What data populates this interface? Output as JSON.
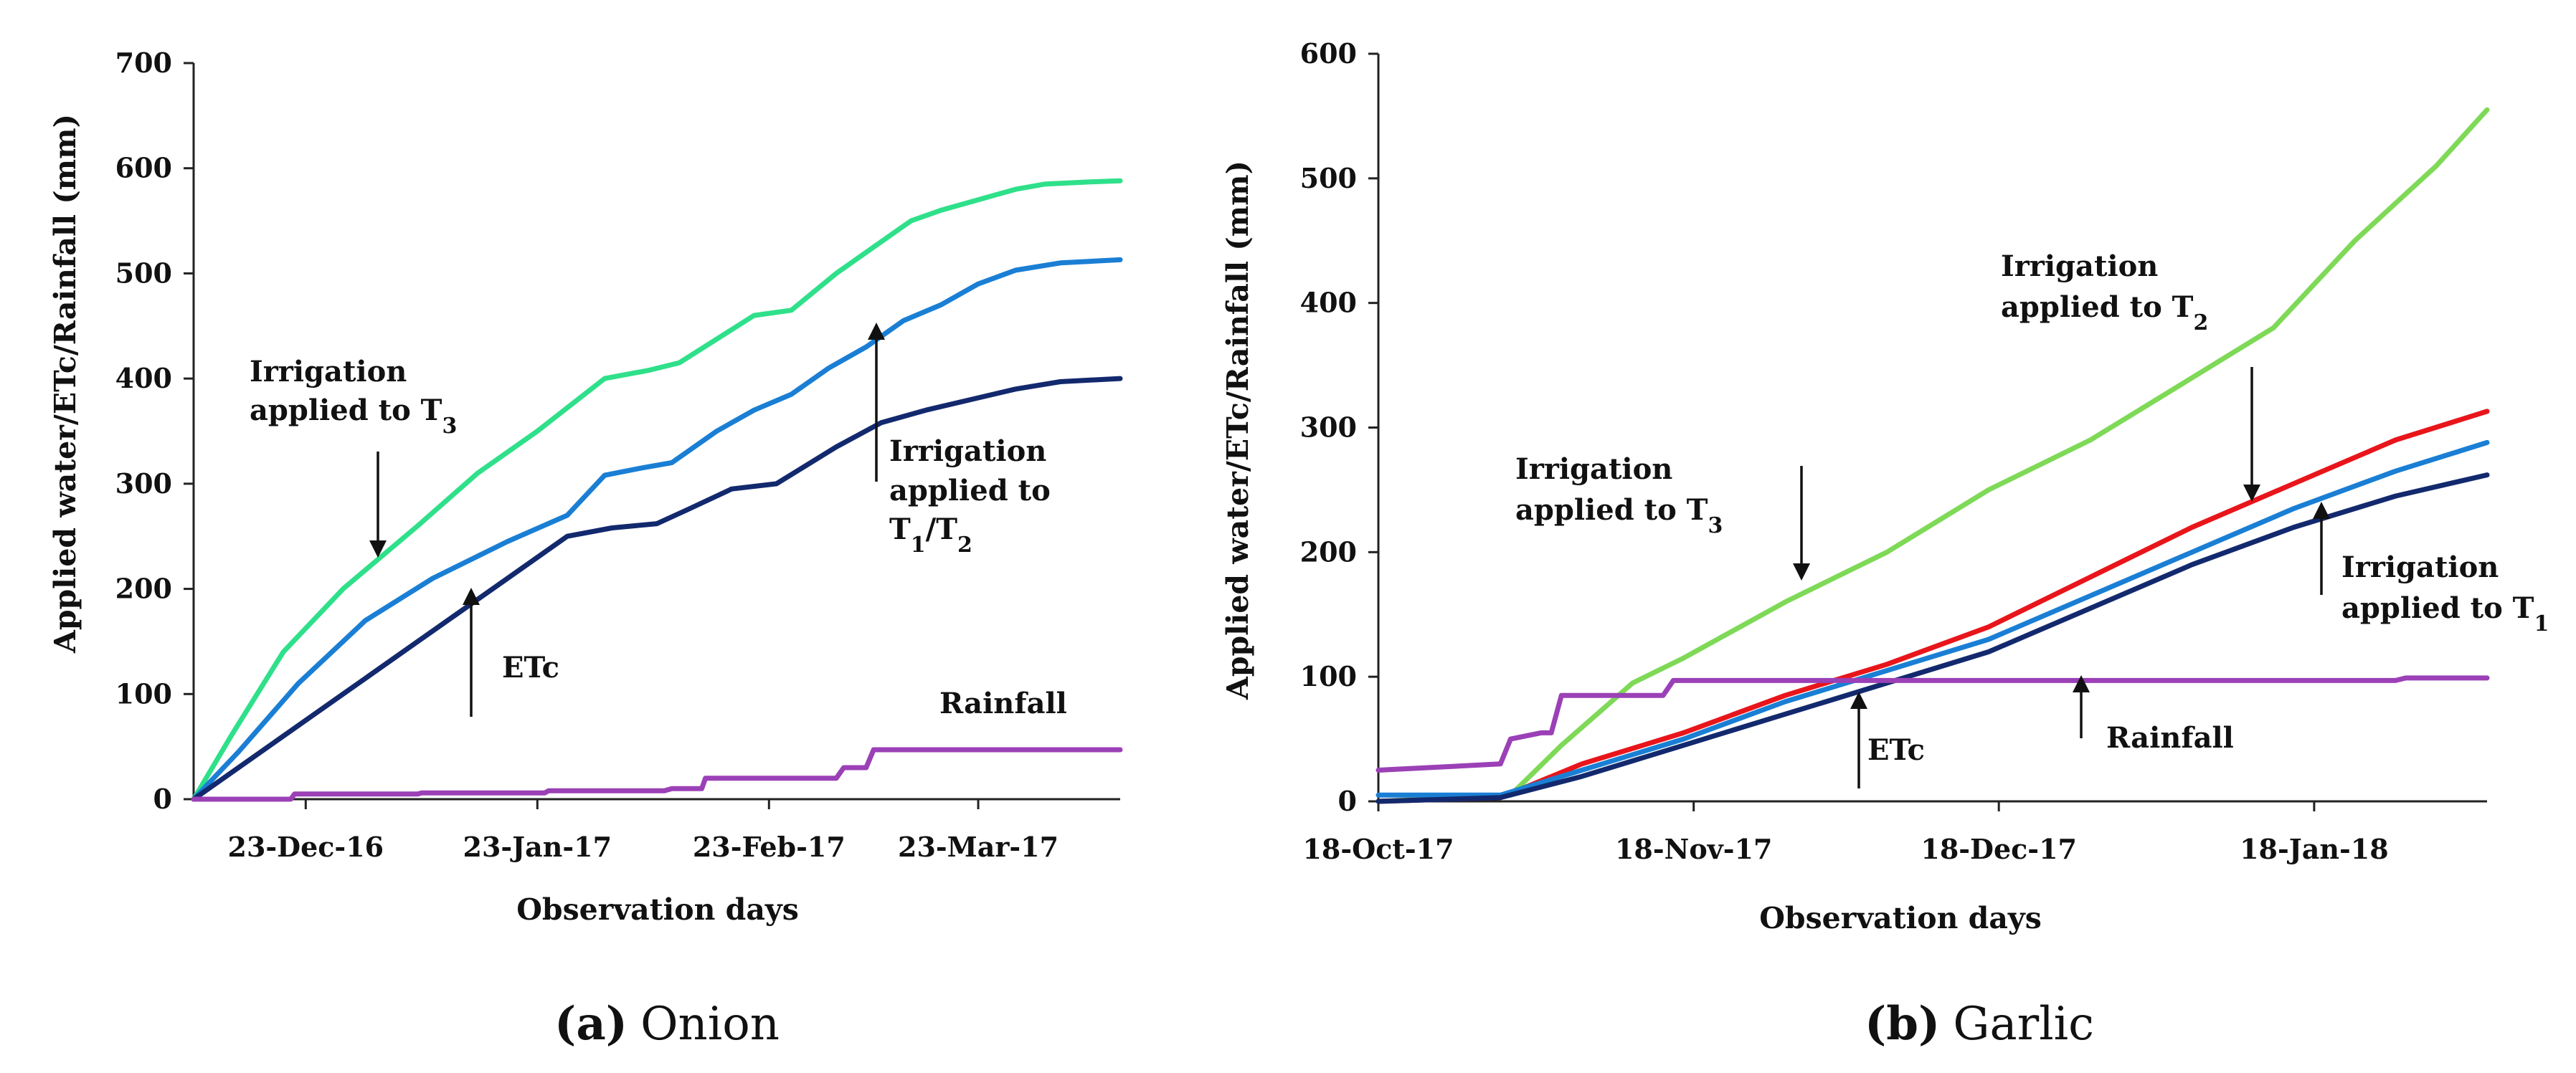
{
  "chart_data": [
    {
      "type": "line",
      "panel_label": "(a)",
      "panel_name": "Onion",
      "xlabel": "Observation days",
      "ylabel": "Applied water/ETc/Rainfall (mm)",
      "ylim": [
        0,
        700
      ],
      "yticks": [
        "0",
        "100",
        "200",
        "300",
        "400",
        "500",
        "600",
        "700"
      ],
      "xlim": [
        0,
        124
      ],
      "xticks": [
        {
          "label": "23-Dec-16",
          "day": 15
        },
        {
          "label": "23-Jan-17",
          "day": 46
        },
        {
          "label": "23-Feb-17",
          "day": 77
        },
        {
          "label": "23-Mar-17",
          "day": 105
        }
      ],
      "series": [
        {
          "name": "Irrigation applied to T3",
          "color": "#2fe08a",
          "x": [
            0,
            5,
            12,
            20,
            30,
            38,
            46,
            55,
            61,
            65,
            75,
            80,
            86,
            92,
            96,
            100,
            105,
            110,
            114,
            120,
            124
          ],
          "y": [
            0,
            60,
            140,
            200,
            260,
            310,
            350,
            400,
            408,
            415,
            460,
            465,
            500,
            530,
            550,
            560,
            570,
            580,
            585,
            587,
            588
          ]
        },
        {
          "name": "Irrigation applied to T1/T2",
          "color": "#1a7fd4",
          "x": [
            0,
            6,
            14,
            23,
            32,
            42,
            50,
            55,
            60,
            64,
            70,
            75,
            80,
            85,
            90,
            95,
            100,
            105,
            110,
            116,
            124
          ],
          "y": [
            0,
            45,
            110,
            170,
            210,
            245,
            270,
            308,
            315,
            320,
            350,
            370,
            385,
            410,
            430,
            455,
            470,
            490,
            503,
            510,
            513
          ]
        },
        {
          "name": "ETc",
          "color": "#13296e",
          "x": [
            0,
            10,
            20,
            30,
            40,
            50,
            56,
            62,
            66,
            72,
            78,
            86,
            92,
            98,
            104,
            110,
            116,
            124
          ],
          "y": [
            0,
            50,
            100,
            150,
            200,
            250,
            258,
            262,
            275,
            295,
            300,
            335,
            358,
            370,
            380,
            390,
            397,
            400
          ]
        },
        {
          "name": "Rainfall",
          "color": "#9b40b6",
          "x": [
            0,
            13,
            13.5,
            30,
            30.5,
            47,
            47.5,
            63,
            64,
            68,
            68.5,
            86,
            87,
            90,
            91,
            124
          ],
          "y": [
            0,
            0,
            5,
            5,
            6,
            6,
            8,
            8,
            10,
            10,
            20,
            20,
            30,
            30,
            47,
            47
          ]
        }
      ],
      "annotations": {
        "t3_line1": "Irrigation",
        "t3_line2_prefix": "applied to T",
        "t3_line2_sub": "3",
        "t12_line1": "Irrigation",
        "t12_line2": "applied to",
        "t12_line3_a": "T",
        "t12_line3_a_sub": "1",
        "t12_line3_slash": "/T",
        "t12_line3_b_sub": "2",
        "etc": "ETc",
        "rainfall": "Rainfall"
      }
    },
    {
      "type": "line",
      "panel_label": "(b)",
      "panel_name": "Garlic",
      "xlabel": "Observation days",
      "ylabel": "Applied water/ETc/Rainfall (mm)",
      "ylim": [
        0,
        600
      ],
      "yticks": [
        "0",
        "100",
        "200",
        "300",
        "400",
        "500",
        "600"
      ],
      "xlim": [
        0,
        109
      ],
      "xticks": [
        {
          "label": "18-Oct-17",
          "day": 0
        },
        {
          "label": "18-Nov-17",
          "day": 31
        },
        {
          "label": "18-Dec-17",
          "day": 61
        },
        {
          "label": "18-Jan-18",
          "day": 92
        }
      ],
      "series": [
        {
          "name": "Irrigation applied to T2",
          "color": "#7ed957",
          "x": [
            0,
            13,
            18,
            25,
            30,
            40,
            50,
            60,
            70,
            80,
            88,
            96,
            104,
            109
          ],
          "y": [
            0,
            5,
            45,
            95,
            115,
            160,
            200,
            250,
            290,
            340,
            380,
            450,
            510,
            555
          ]
        },
        {
          "name": "Red series",
          "color": "#e8151b",
          "x": [
            0,
            12,
            20,
            30,
            40,
            50,
            60,
            70,
            80,
            90,
            100,
            109
          ],
          "y": [
            0,
            3,
            30,
            55,
            85,
            110,
            140,
            180,
            220,
            255,
            290,
            313
          ]
        },
        {
          "name": "Irrigation applied to T1",
          "color": "#1a7fd4",
          "x": [
            0,
            12,
            20,
            30,
            40,
            50,
            60,
            70,
            80,
            90,
            100,
            109
          ],
          "y": [
            5,
            5,
            25,
            50,
            80,
            105,
            130,
            165,
            200,
            235,
            265,
            288
          ]
        },
        {
          "name": "ETc",
          "color": "#13296e",
          "x": [
            0,
            12,
            20,
            30,
            40,
            50,
            60,
            70,
            80,
            90,
            100,
            109
          ],
          "y": [
            0,
            3,
            20,
            45,
            70,
            95,
            120,
            155,
            190,
            220,
            245,
            262
          ]
        },
        {
          "name": "Rainfall",
          "color": "#9b40b6",
          "x": [
            0,
            12,
            13,
            16,
            17,
            18,
            19,
            28,
            29,
            100,
            101,
            109
          ],
          "y": [
            25,
            30,
            50,
            55,
            55,
            85,
            85,
            85,
            97,
            97,
            99,
            99
          ]
        }
      ],
      "annotations": {
        "t2_line1": "Irrigation",
        "t2_line2_prefix": "applied to T",
        "t2_line2_sub": "2",
        "t3_line1": "Irrigation",
        "t3_line2_prefix": "applied to T",
        "t3_line2_sub": "3",
        "t1_line1": "Irrigation",
        "t1_line2_prefix": "applied to T",
        "t1_line2_sub": "1",
        "etc": "ETc",
        "rainfall": "Rainfall"
      }
    }
  ]
}
